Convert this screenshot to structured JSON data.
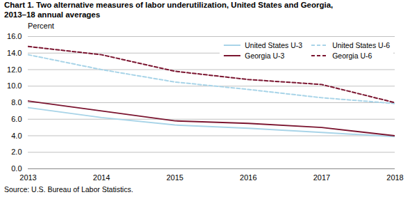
{
  "chart_data": {
    "type": "line",
    "title": "Chart 1. Two alternative measures of labor underutilization, United States and Georgia,",
    "subtitle": "2013–18 annual averages",
    "y_label": "Percent",
    "caption": "Source: U.S. Bureau of Labor Statistics.",
    "x": [
      2013,
      2014,
      2015,
      2016,
      2017,
      2018
    ],
    "xlim": [
      2013,
      2018
    ],
    "xticks": [
      2013,
      2014,
      2015,
      2016,
      2017,
      2018
    ],
    "ylim": [
      0.0,
      16.0
    ],
    "yticks": [
      {
        "value": 0.0,
        "label": "0.0"
      },
      {
        "value": 2.0,
        "label": "2.0"
      },
      {
        "value": 4.0,
        "label": "4.0"
      },
      {
        "value": 6.0,
        "label": "6.0"
      },
      {
        "value": 8.0,
        "label": "8.0"
      },
      {
        "value": 10.0,
        "label": "10.0"
      },
      {
        "value": 12.0,
        "label": "12.0"
      },
      {
        "value": 14.0,
        "label": "14.0"
      },
      {
        "value": 16.0,
        "label": "16.0"
      }
    ],
    "grid": "y",
    "legend": "upper right",
    "series": [
      {
        "name": "United States  U-3",
        "color": "#a8d4e8",
        "line_style": "solid",
        "values": [
          7.4,
          6.2,
          5.3,
          4.9,
          4.4,
          3.9
        ]
      },
      {
        "name": "United States  U-6",
        "color": "#a8d4e8",
        "line_style": "dashed",
        "values": [
          13.8,
          12.0,
          10.5,
          9.6,
          8.6,
          7.9
        ]
      },
      {
        "name": "Georgia  U-3",
        "color": "#7b1530",
        "line_style": "solid",
        "values": [
          8.2,
          7.0,
          5.8,
          5.5,
          5.0,
          4.0
        ]
      },
      {
        "name": "Georgia  U-6",
        "color": "#7b1530",
        "line_style": "dashed",
        "values": [
          14.8,
          13.8,
          11.8,
          10.8,
          10.2,
          8.0
        ]
      }
    ]
  }
}
